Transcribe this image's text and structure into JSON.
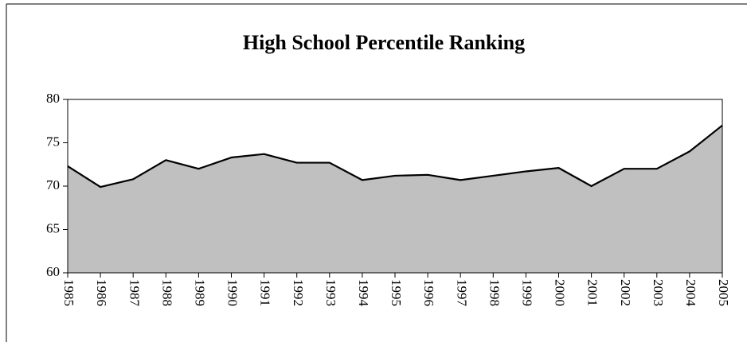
{
  "chart_data": {
    "type": "area",
    "title": "High School Percentile Ranking",
    "categories": [
      "1985",
      "1986",
      "1987",
      "1988",
      "1989",
      "1990",
      "1991",
      "1992",
      "1993",
      "1994",
      "1995",
      "1996",
      "1997",
      "1998",
      "1999",
      "2000",
      "2001",
      "2002",
      "2003",
      "2004",
      "2005"
    ],
    "values": [
      72.3,
      69.9,
      70.8,
      73.0,
      72.0,
      73.3,
      73.7,
      72.7,
      72.7,
      70.7,
      71.2,
      71.3,
      70.7,
      71.2,
      71.7,
      72.1,
      70.0,
      72.0,
      72.0,
      74.0,
      77.0
    ],
    "color": "#c0c0c0",
    "line_color": "#000000",
    "ylim": [
      60,
      80
    ],
    "yticks": [
      60,
      65,
      70,
      75,
      80
    ]
  }
}
